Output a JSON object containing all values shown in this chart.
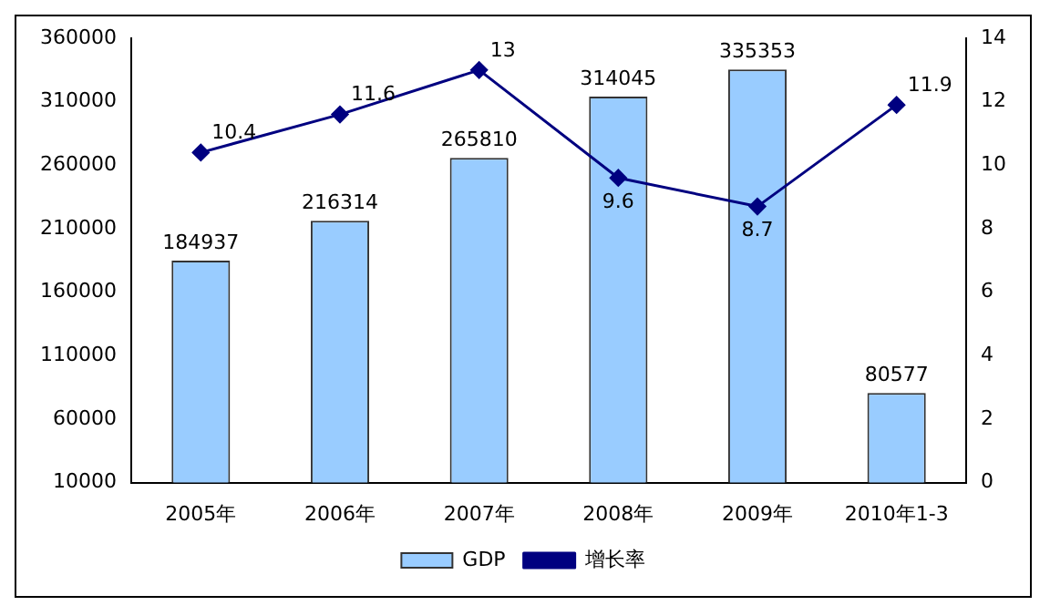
{
  "chart_data": {
    "type": "bar",
    "categories": [
      "2005年",
      "2006年",
      "2007年",
      "2008年",
      "2009年",
      "2010年1-3"
    ],
    "series": [
      {
        "name": "GDP",
        "color": "#99ccff",
        "values": [
          184937,
          216314,
          265810,
          314045,
          335353,
          80577
        ]
      },
      {
        "name": "增长率",
        "type": "line",
        "axis": "y2",
        "color": "#000080",
        "marker": "diamond",
        "values": [
          10.4,
          11.6,
          13,
          9.6,
          8.7,
          11.9
        ]
      }
    ],
    "ylim": [
      10000,
      360000
    ],
    "yticks": [
      10000,
      60000,
      110000,
      160000,
      210000,
      260000,
      310000,
      360000
    ],
    "y2lim": [
      0,
      14
    ],
    "y2ticks": [
      0,
      2,
      4,
      6,
      8,
      10,
      12,
      14
    ],
    "data_labels": true,
    "grid": false,
    "legend": "bottom"
  }
}
